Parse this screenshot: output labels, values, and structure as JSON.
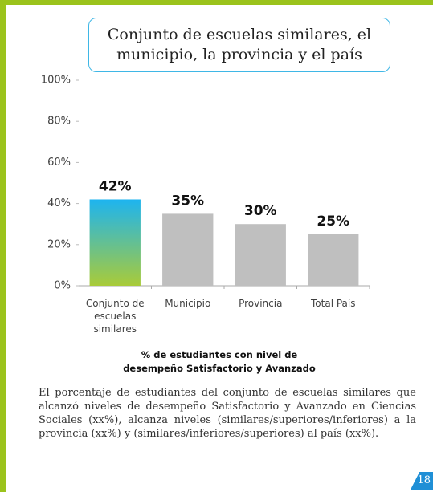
{
  "chart_data": {
    "type": "bar",
    "title": "Conjunto de escuelas similares, el municipio, la provincia y el país",
    "categories": [
      "Conjunto de escuelas similares",
      "Municipio",
      "Provincia",
      "Total País"
    ],
    "values": [
      42,
      35,
      30,
      25
    ],
    "value_labels": [
      "42%",
      "35%",
      "30%",
      "25%"
    ],
    "colors": [
      [
        "#1db4f0",
        "#a9cb38"
      ],
      "#bfbfbf",
      "#bfbfbf",
      "#bfbfbf"
    ],
    "x_label": "% de estudiantes con nivel de desempeño Satisfactorio y Avanzado",
    "ylim": [
      0,
      100
    ],
    "yticks": [
      {
        "value": 0,
        "label": "0%"
      },
      {
        "value": 20,
        "label": "20%"
      },
      {
        "value": 40,
        "label": "40%"
      },
      {
        "value": 60,
        "label": "60%"
      },
      {
        "value": 80,
        "label": "80%"
      },
      {
        "value": 100,
        "label": "100%"
      }
    ],
    "grid": false
  },
  "paragraph": "El porcentaje de  estudiantes del conjunto de escuelas similares que alcanzó niveles de desempeño Satisfactorio y Avanzado en Ciencias Sociales (xx%), alcanza niveles (similares/superiores/inferiores) a la provincia (xx%) y (similares/inferiores/superiores) al país (xx%).",
  "page_number": "18"
}
